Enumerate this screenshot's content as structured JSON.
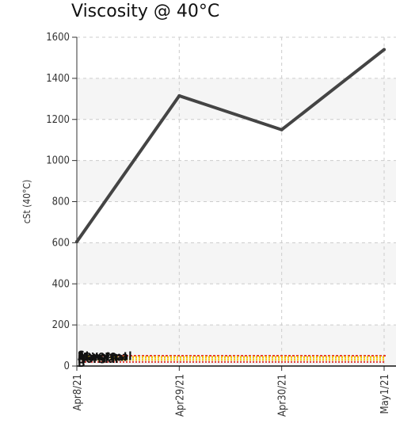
{
  "chart_data": {
    "type": "line",
    "title": "Viscosity @ 40°C",
    "xlabel": "",
    "ylabel": "cSt (40°C)",
    "categories": [
      "Apr8/21",
      "Apr29/21",
      "Apr30/21",
      "May1/21"
    ],
    "series": [
      {
        "values": [
          605,
          1315,
          1150,
          1540
        ]
      }
    ],
    "ylim": [
      0,
      1600
    ],
    "yticks": [
      0,
      200,
      400,
      600,
      800,
      1000,
      1200,
      1400,
      1600
    ],
    "grid": true,
    "limit_bands": [
      {
        "label": "Severe",
        "value": 50,
        "color": "#e53935"
      },
      {
        "label": "Abnormal",
        "value": 45,
        "color": "#f5c400"
      },
      {
        "label": "Marginal",
        "value": 40,
        "color": "#f5c400"
      },
      {
        "label": "Normal",
        "value": 30,
        "color": "#f5c400"
      },
      {
        "label": "B",
        "value": 20,
        "color": "#e53935"
      }
    ],
    "colors": {
      "line": "#444444",
      "band_fill": "#f5f5f5",
      "grid": "#cccccc"
    }
  }
}
